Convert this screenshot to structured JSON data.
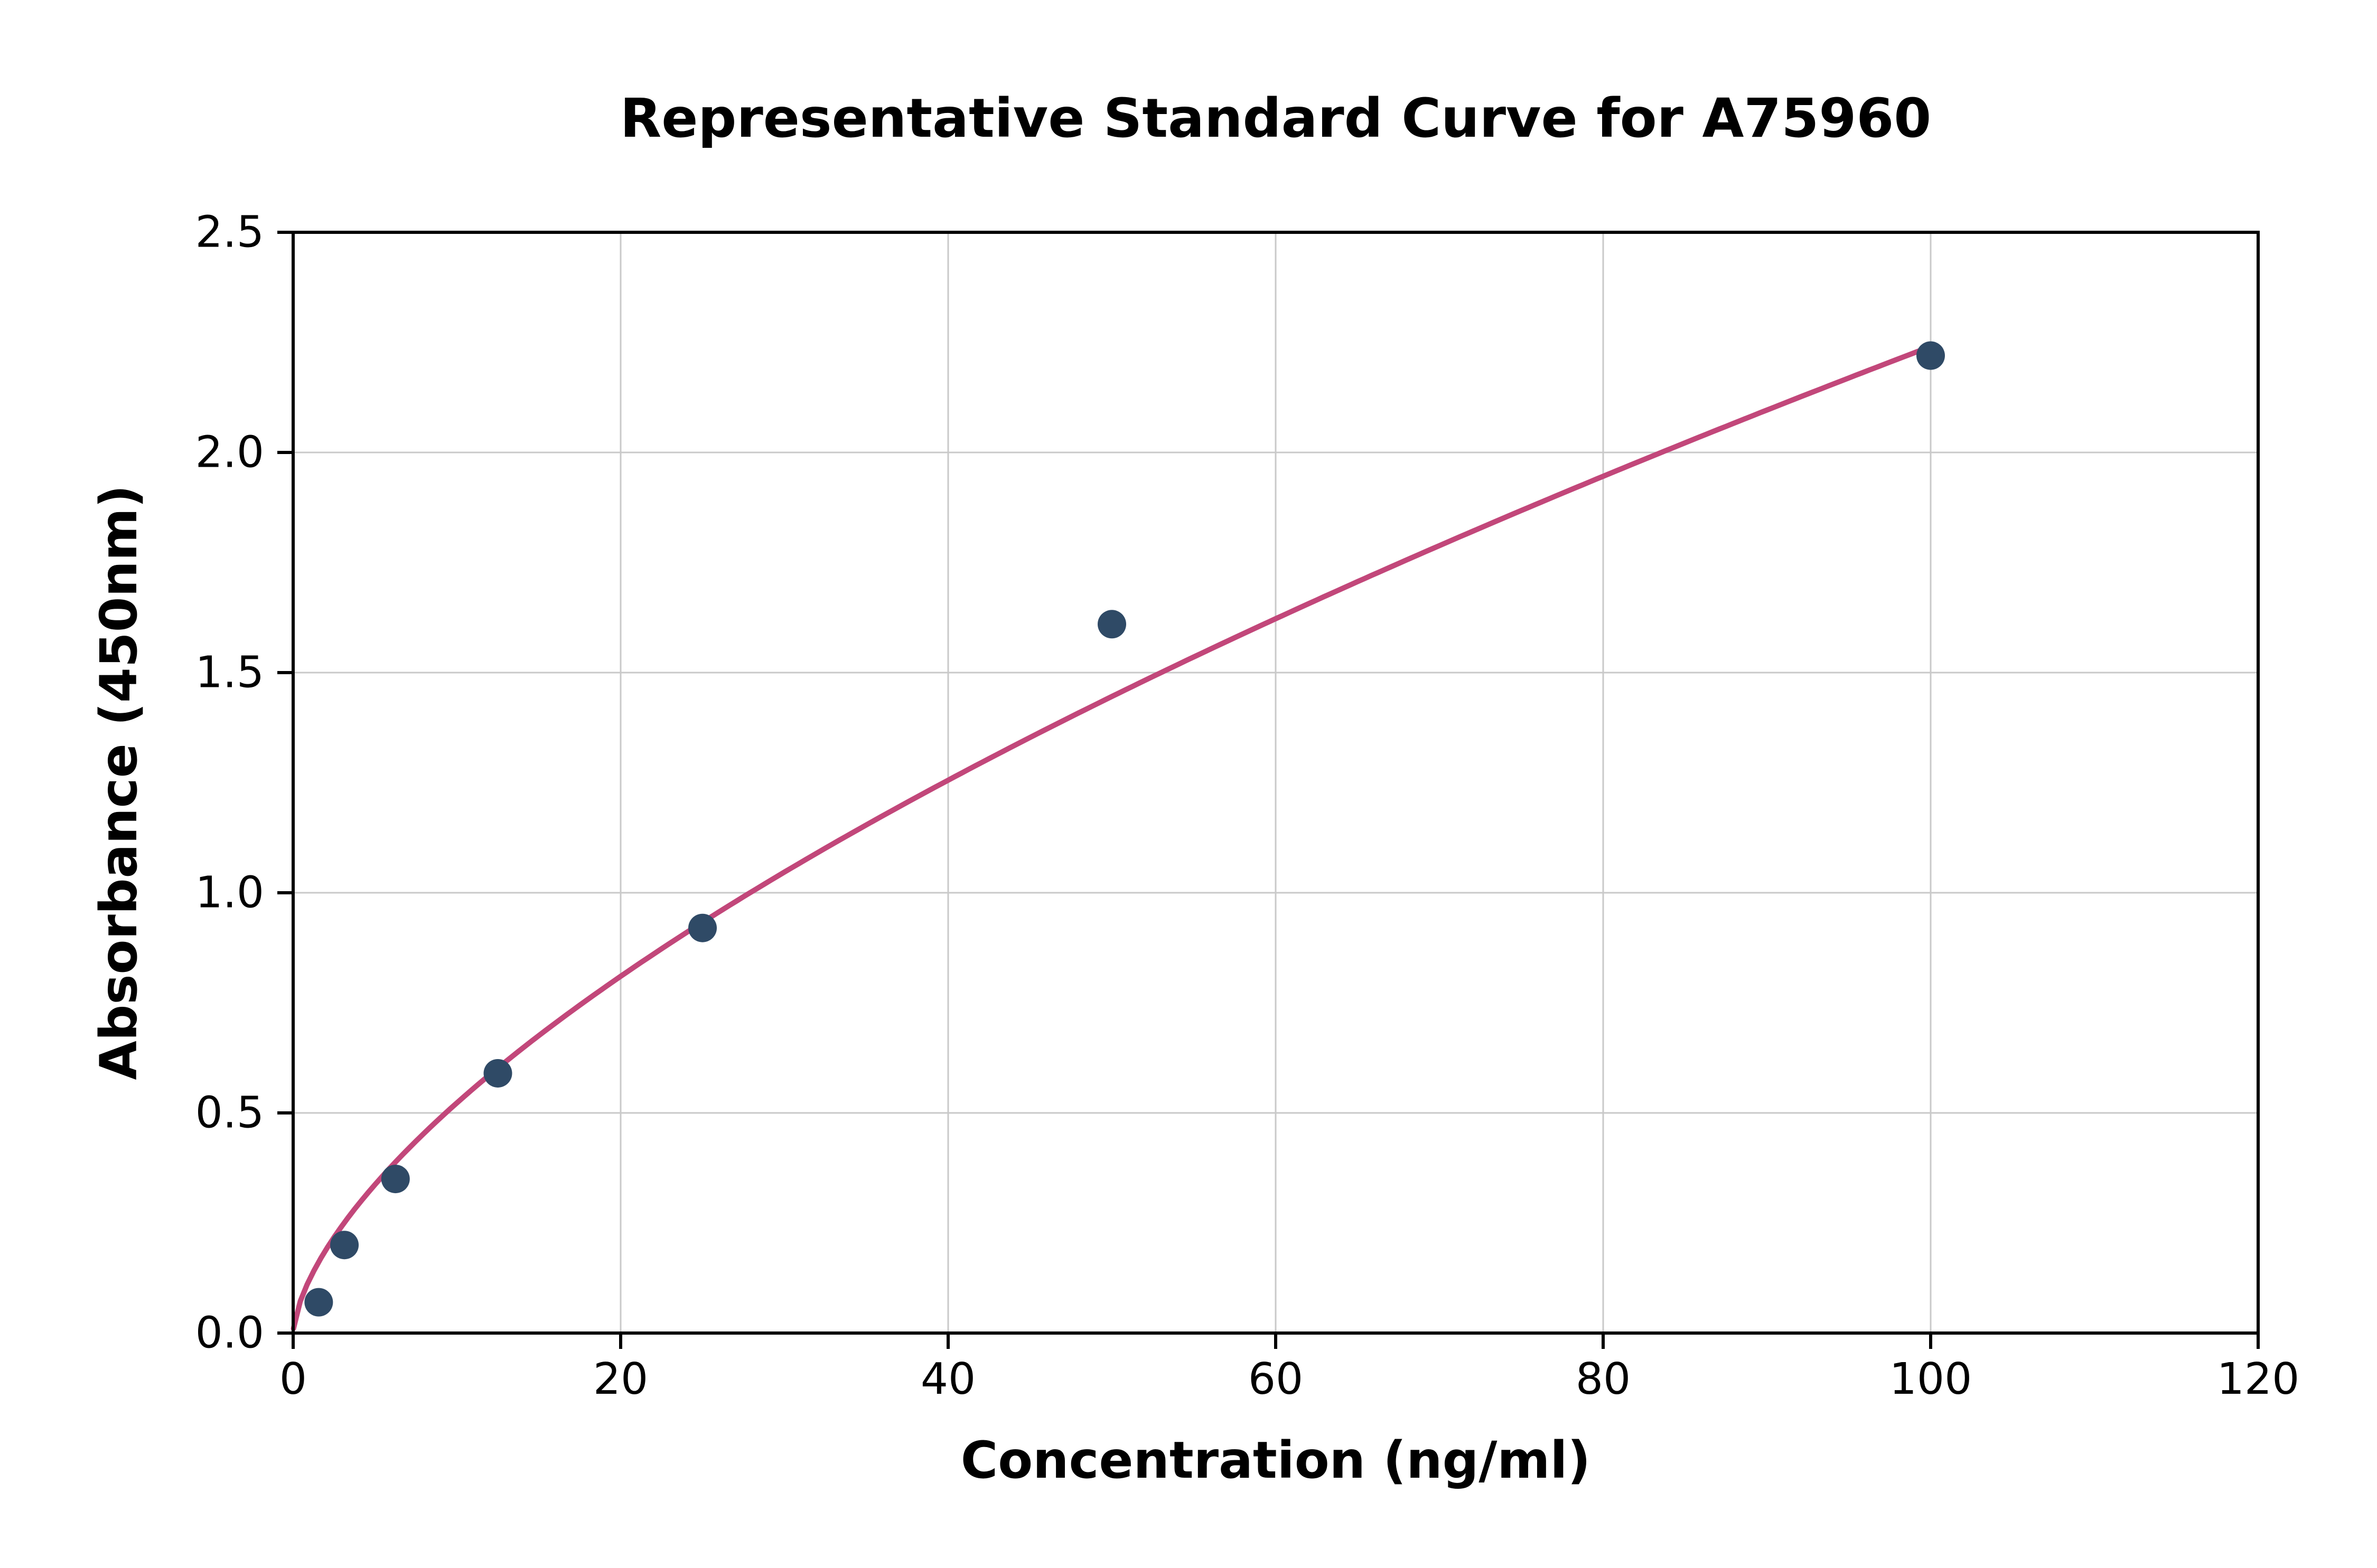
{
  "chart_data": {
    "type": "scatter",
    "title": "Representative Standard Curve for A75960",
    "xlabel": "Concentration (ng/ml)",
    "ylabel": "Absorbance (450nm)",
    "xlim": [
      0,
      120
    ],
    "ylim": [
      0,
      2.5
    ],
    "xticks": [
      0,
      20,
      40,
      60,
      80,
      100,
      120
    ],
    "xtick_labels": [
      "0",
      "20",
      "40",
      "60",
      "80",
      "100",
      "120"
    ],
    "yticks": [
      0.0,
      0.5,
      1.0,
      1.5,
      2.0,
      2.5
    ],
    "ytick_labels": [
      "0.0",
      "0.5",
      "1.0",
      "1.5",
      "2.0",
      "2.5"
    ],
    "grid": true,
    "legend": "none",
    "points": {
      "x": [
        1.56,
        3.13,
        6.25,
        12.5,
        25,
        50,
        100
      ],
      "y": [
        0.07,
        0.2,
        0.35,
        0.59,
        0.92,
        1.61,
        2.22
      ]
    },
    "trendline": {
      "type": "power",
      "coef_a": 0.122,
      "exp_b": 0.632,
      "x_start": 0.02,
      "x_end": 100
    },
    "colors": {
      "point": "#2f4a66",
      "curve": "#c2477a",
      "grid": "#c9c9c9",
      "axis": "#000000",
      "background": "#ffffff"
    }
  }
}
